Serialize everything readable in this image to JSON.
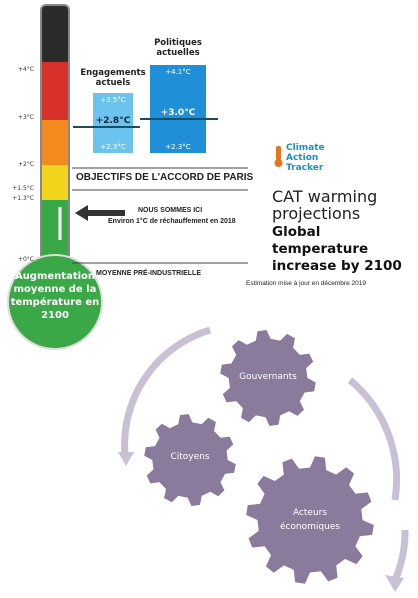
{
  "thermometer": {
    "scale": [
      "+4°C",
      "+3°C",
      "+2°C",
      "+1.5°C",
      "+1.3°C",
      "+0°C"
    ],
    "bulb_label": "Augmentation moyenne de la température en 2100"
  },
  "scenarios": [
    {
      "title": "Engagements actuels",
      "high": "+3.5°C",
      "mid": "+2.8°C",
      "low": "+2.3°C"
    },
    {
      "title": "Politiques actuelles",
      "high": "+4.1°C",
      "mid": "+3.0°C",
      "low": "+2.3°C"
    }
  ],
  "markers": {
    "paris": "OBJECTIFS DE L'ACCORD DE PARIS",
    "here_title": "NOUS SOMMES ICI",
    "here_note": "Environ 1°C de réchauffement en 2018",
    "preindustrial": "MOYENNE PRÉ-INDUSTRIELLE"
  },
  "brand": {
    "logo": "Climate Action Tracker",
    "title": "CAT warming projections",
    "subtitle": "Global temperature increase by 2100",
    "note": "Estimation mise à jour en décembre 2019"
  },
  "gears": {
    "labels": [
      "Gouvernants",
      "Citoyens",
      "Acteurs économiques"
    ]
  }
}
